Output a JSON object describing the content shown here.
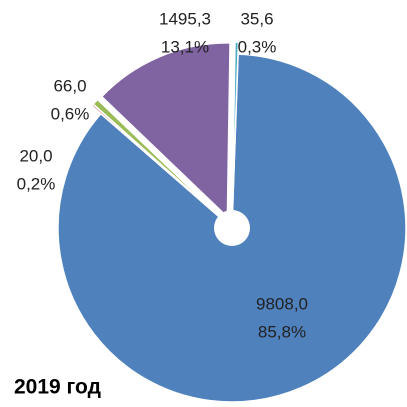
{
  "chart_data": {
    "type": "pie",
    "title": "2019 год",
    "values": [
      9808.0,
      20.0,
      66.0,
      1495.3,
      35.6
    ],
    "value_labels": [
      "9808,0",
      "20,0",
      "66,0",
      "1495,3",
      "35,6"
    ],
    "percents": [
      85.8,
      0.2,
      0.6,
      13.1,
      0.3
    ],
    "percent_labels": [
      "85,8%",
      "0,2%",
      "0,6%",
      "13,1%",
      "0,3%"
    ],
    "colors": [
      "#4f81bd",
      "#c0504d",
      "#9bbb59",
      "#8064a2",
      "#4bacc6"
    ]
  }
}
